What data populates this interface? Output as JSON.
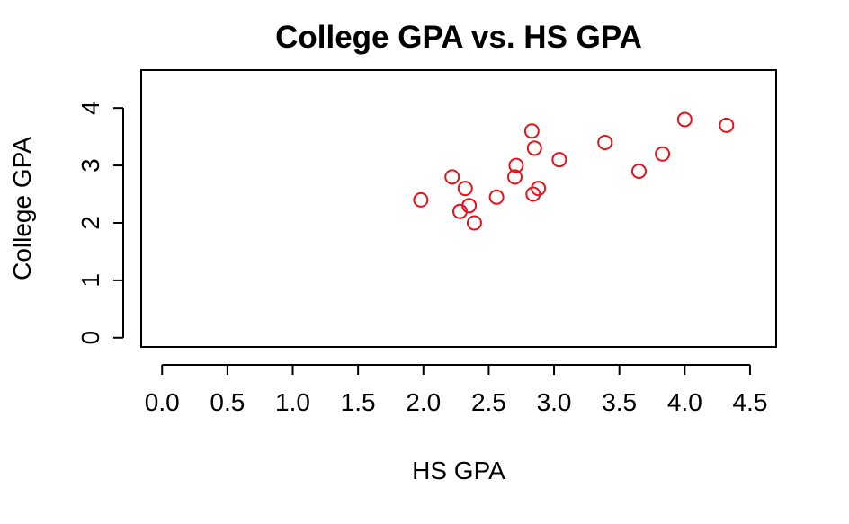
{
  "chart_data": {
    "type": "scatter",
    "title": "College GPA vs. HS GPA",
    "xlabel": "HS GPA",
    "ylabel": "College GPA",
    "xlim": [
      -0.16,
      4.7
    ],
    "ylim": [
      -0.16,
      4.66
    ],
    "xticks": [
      0.0,
      0.5,
      1.0,
      1.5,
      2.0,
      2.5,
      3.0,
      3.5,
      4.0,
      4.5
    ],
    "xtick_labels": [
      "0.0",
      "0.5",
      "1.0",
      "1.5",
      "2.0",
      "2.5",
      "3.0",
      "3.5",
      "4.0",
      "4.5"
    ],
    "yticks": [
      0,
      1,
      2,
      3,
      4
    ],
    "ytick_labels": [
      "0",
      "1",
      "2",
      "3",
      "4"
    ],
    "grid": false,
    "marker": "open-circle",
    "point_color": "#e8111b",
    "points": [
      {
        "x": 1.98,
        "y": 2.4
      },
      {
        "x": 2.22,
        "y": 2.8
      },
      {
        "x": 2.28,
        "y": 2.2
      },
      {
        "x": 2.32,
        "y": 2.6
      },
      {
        "x": 2.35,
        "y": 2.3
      },
      {
        "x": 2.39,
        "y": 2.0
      },
      {
        "x": 2.56,
        "y": 2.45
      },
      {
        "x": 2.7,
        "y": 2.8
      },
      {
        "x": 2.71,
        "y": 3.0
      },
      {
        "x": 2.83,
        "y": 3.6
      },
      {
        "x": 2.84,
        "y": 2.5
      },
      {
        "x": 2.85,
        "y": 3.3
      },
      {
        "x": 2.88,
        "y": 2.6
      },
      {
        "x": 3.04,
        "y": 3.1
      },
      {
        "x": 3.39,
        "y": 3.4
      },
      {
        "x": 3.65,
        "y": 2.9
      },
      {
        "x": 3.83,
        "y": 3.2
      },
      {
        "x": 4.0,
        "y": 3.8
      },
      {
        "x": 4.32,
        "y": 3.7
      }
    ]
  }
}
